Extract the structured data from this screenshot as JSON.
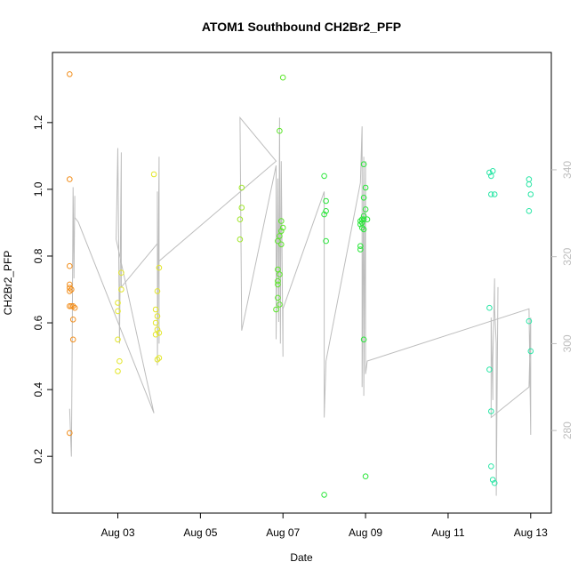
{
  "chart_data": {
    "type": "scatter",
    "title": "ATOM1 Southbound CH2Br2_PFP",
    "xlabel": "Date",
    "ylabel": "CH2Br2_PFP",
    "xlim": [
      "2016-08-01T10:00",
      "2016-08-13T12:00"
    ],
    "ylim": [
      0.03,
      1.41
    ],
    "y2lim": [
      261,
      367
    ],
    "x_ticks": [
      {
        "label": "Aug 03",
        "date": "2016-08-03"
      },
      {
        "label": "Aug 05",
        "date": "2016-08-05"
      },
      {
        "label": "Aug 07",
        "date": "2016-08-07"
      },
      {
        "label": "Aug 09",
        "date": "2016-08-09"
      },
      {
        "label": "Aug 11",
        "date": "2016-08-11"
      },
      {
        "label": "Aug 13",
        "date": "2016-08-13"
      }
    ],
    "y_ticks": [
      "0.2",
      "0.4",
      "0.6",
      "0.8",
      "1.0",
      "1.2"
    ],
    "y2_ticks": [
      "280",
      "300",
      "320",
      "340"
    ],
    "grid": false,
    "legend": "none",
    "point_groups": [
      {
        "color": "#F28E1C",
        "points": [
          [
            "2016-08-01T20:00",
            1.345
          ],
          [
            "2016-08-01T20:00",
            1.03
          ],
          [
            "2016-08-01T20:00",
            0.77
          ],
          [
            "2016-08-01T20:00",
            0.715
          ],
          [
            "2016-08-01T20:00",
            0.705
          ],
          [
            "2016-08-01T20:00",
            0.695
          ],
          [
            "2016-08-01T21:00",
            0.7
          ],
          [
            "2016-08-01T20:00",
            0.65
          ],
          [
            "2016-08-01T21:00",
            0.65
          ],
          [
            "2016-08-01T22:00",
            0.65
          ],
          [
            "2016-08-01T23:00",
            0.645
          ],
          [
            "2016-08-01T22:00",
            0.61
          ],
          [
            "2016-08-01T22:00",
            0.55
          ],
          [
            "2016-08-01T20:00",
            0.27
          ]
        ]
      },
      {
        "color": "#E3E62A",
        "points": [
          [
            "2016-08-03T00:00",
            0.66
          ],
          [
            "2016-08-03T00:00",
            0.635
          ],
          [
            "2016-08-03T02:00",
            0.75
          ],
          [
            "2016-08-03T02:00",
            0.7
          ],
          [
            "2016-08-03T00:00",
            0.55
          ],
          [
            "2016-08-03T01:00",
            0.485
          ],
          [
            "2016-08-03T00:00",
            0.455
          ],
          [
            "2016-08-03T21:00",
            1.045
          ],
          [
            "2016-08-03T22:00",
            0.64
          ],
          [
            "2016-08-03T23:00",
            0.62
          ],
          [
            "2016-08-03T22:00",
            0.6
          ],
          [
            "2016-08-03T23:00",
            0.58
          ],
          [
            "2016-08-03T22:00",
            0.565
          ],
          [
            "2016-08-04T00:00",
            0.57
          ],
          [
            "2016-08-03T23:00",
            0.695
          ],
          [
            "2016-08-04T00:00",
            0.765
          ],
          [
            "2016-08-03T23:00",
            0.49
          ],
          [
            "2016-08-04T00:00",
            0.495
          ]
        ]
      },
      {
        "color": "#9FE62A",
        "points": [
          [
            "2016-08-06T00:00",
            1.005
          ],
          [
            "2016-08-06T00:00",
            0.945
          ],
          [
            "2016-08-05T23:00",
            0.91
          ],
          [
            "2016-08-05T23:00",
            0.85
          ]
        ]
      },
      {
        "color": "#5CE62A",
        "points": [
          [
            "2016-08-06T21:00",
            0.845
          ],
          [
            "2016-08-06T22:00",
            0.86
          ],
          [
            "2016-08-06T23:00",
            0.875
          ],
          [
            "2016-08-06T23:00",
            0.905
          ],
          [
            "2016-08-06T23:00",
            0.835
          ],
          [
            "2016-08-07T00:00",
            0.885
          ],
          [
            "2016-08-06T22:00",
            1.175
          ],
          [
            "2016-08-07T00:00",
            1.335
          ],
          [
            "2016-08-06T21:00",
            0.76
          ],
          [
            "2016-08-06T22:00",
            0.745
          ],
          [
            "2016-08-06T21:00",
            0.725
          ],
          [
            "2016-08-06T21:00",
            0.715
          ],
          [
            "2016-08-06T21:00",
            0.675
          ],
          [
            "2016-08-06T22:00",
            0.655
          ],
          [
            "2016-08-06T20:00",
            0.64
          ]
        ]
      },
      {
        "color": "#2AE63A",
        "points": [
          [
            "2016-08-08T00:00",
            1.04
          ],
          [
            "2016-08-08T01:00",
            0.965
          ],
          [
            "2016-08-08T01:00",
            0.935
          ],
          [
            "2016-08-08T00:00",
            0.925
          ],
          [
            "2016-08-08T01:00",
            0.845
          ],
          [
            "2016-08-08T00:00",
            0.085
          ],
          [
            "2016-08-08T21:00",
            0.905
          ],
          [
            "2016-08-08T22:00",
            0.9
          ],
          [
            "2016-08-08T21:00",
            0.895
          ],
          [
            "2016-08-08T22:00",
            0.91
          ],
          [
            "2016-08-08T23:00",
            0.92
          ],
          [
            "2016-08-08T23:00",
            0.91
          ],
          [
            "2016-08-09T01:00",
            0.91
          ],
          [
            "2016-08-09T00:00",
            0.94
          ],
          [
            "2016-08-08T23:00",
            0.975
          ],
          [
            "2016-08-09T00:00",
            1.005
          ],
          [
            "2016-08-08T23:00",
            1.075
          ],
          [
            "2016-08-08T22:00",
            0.885
          ],
          [
            "2016-08-08T23:00",
            0.88
          ],
          [
            "2016-08-08T21:00",
            0.83
          ],
          [
            "2016-08-08T21:00",
            0.82
          ],
          [
            "2016-08-08T23:00",
            0.55
          ],
          [
            "2016-08-09T00:00",
            0.14
          ]
        ]
      },
      {
        "color": "#2AE6A6",
        "points": [
          [
            "2016-08-12T00:00",
            1.05
          ],
          [
            "2016-08-12T01:00",
            1.04
          ],
          [
            "2016-08-12T02:00",
            1.055
          ],
          [
            "2016-08-12T01:00",
            0.985
          ],
          [
            "2016-08-12T03:00",
            0.985
          ],
          [
            "2016-08-12T00:00",
            0.645
          ],
          [
            "2016-08-12T00:00",
            0.46
          ],
          [
            "2016-08-12T01:00",
            0.335
          ],
          [
            "2016-08-12T01:00",
            0.17
          ],
          [
            "2016-08-12T02:00",
            0.13
          ],
          [
            "2016-08-12T03:00",
            0.12
          ],
          [
            "2016-08-12T23:00",
            1.03
          ],
          [
            "2016-08-12T23:00",
            1.015
          ],
          [
            "2016-08-13T00:00",
            0.985
          ],
          [
            "2016-08-12T23:00",
            0.935
          ],
          [
            "2016-08-12T23:00",
            0.605
          ],
          [
            "2016-08-13T00:00",
            0.515
          ]
        ]
      }
    ],
    "line_series": {
      "color": "#bdbdbd",
      "axis": "right",
      "points": [
        [
          "2016-08-01T20:00",
          285
        ],
        [
          "2016-08-01T21:00",
          274
        ],
        [
          "2016-08-01T21:30",
          300
        ],
        [
          "2016-08-01T22:00",
          336
        ],
        [
          "2016-08-01T22:30",
          315
        ],
        [
          "2016-08-01T23:00",
          334
        ],
        [
          "2016-08-01T23:00",
          329
        ],
        [
          "2016-08-02T01:00",
          328
        ],
        [
          "2016-08-03T21:00",
          284
        ],
        [
          "2016-08-02T23:00",
          324
        ],
        [
          "2016-08-03T00:00",
          345
        ],
        [
          "2016-08-03T01:00",
          300
        ],
        [
          "2016-08-03T02:00",
          344
        ],
        [
          "2016-08-03T02:00",
          313
        ],
        [
          "2016-08-03T23:00",
          323
        ],
        [
          "2016-08-03T23:00",
          335
        ],
        [
          "2016-08-03T23:00",
          295
        ],
        [
          "2016-08-04T00:00",
          343
        ],
        [
          "2016-08-04T00:00",
          300
        ],
        [
          "2016-08-04T00:00",
          319
        ],
        [
          "2016-08-06T20:00",
          342
        ],
        [
          "2016-08-05T23:00",
          352
        ],
        [
          "2016-08-06T00:00",
          303
        ],
        [
          "2016-08-06T20:00",
          341
        ],
        [
          "2016-08-06T20:00",
          301
        ],
        [
          "2016-08-06T21:00",
          338
        ],
        [
          "2016-08-06T21:30",
          305
        ],
        [
          "2016-08-06T22:00",
          352
        ],
        [
          "2016-08-06T22:30",
          300
        ],
        [
          "2016-08-06T23:00",
          342
        ],
        [
          "2016-08-07T00:00",
          297
        ],
        [
          "2016-08-07T00:00",
          308
        ],
        [
          "2016-08-08T00:00",
          335
        ],
        [
          "2016-08-08T00:00",
          283
        ],
        [
          "2016-08-08T01:00",
          296
        ],
        [
          "2016-08-08T21:00",
          337
        ],
        [
          "2016-08-08T22:00",
          350
        ],
        [
          "2016-08-08T22:00",
          290
        ],
        [
          "2016-08-08T23:00",
          343
        ],
        [
          "2016-08-08T23:00",
          288
        ],
        [
          "2016-08-09T00:00",
          342
        ],
        [
          "2016-08-09T00:00",
          293
        ],
        [
          "2016-08-09T01:00",
          296
        ],
        [
          "2016-08-12T23:00",
          308
        ],
        [
          "2016-08-13T00:00",
          279
        ],
        [
          "2016-08-13T00:00",
          306
        ],
        [
          "2016-08-12T23:00",
          290
        ],
        [
          "2016-08-12T01:00",
          283
        ],
        [
          "2016-08-12T01:00",
          306
        ],
        [
          "2016-08-12T02:00",
          287
        ],
        [
          "2016-08-12T02:00",
          296
        ],
        [
          "2016-08-12T03:00",
          315
        ],
        [
          "2016-08-12T03:00",
          308
        ],
        [
          "2016-08-12T04:00",
          300
        ],
        [
          "2016-08-12T04:00",
          265
        ],
        [
          "2016-08-12T05:00",
          313
        ]
      ]
    }
  }
}
